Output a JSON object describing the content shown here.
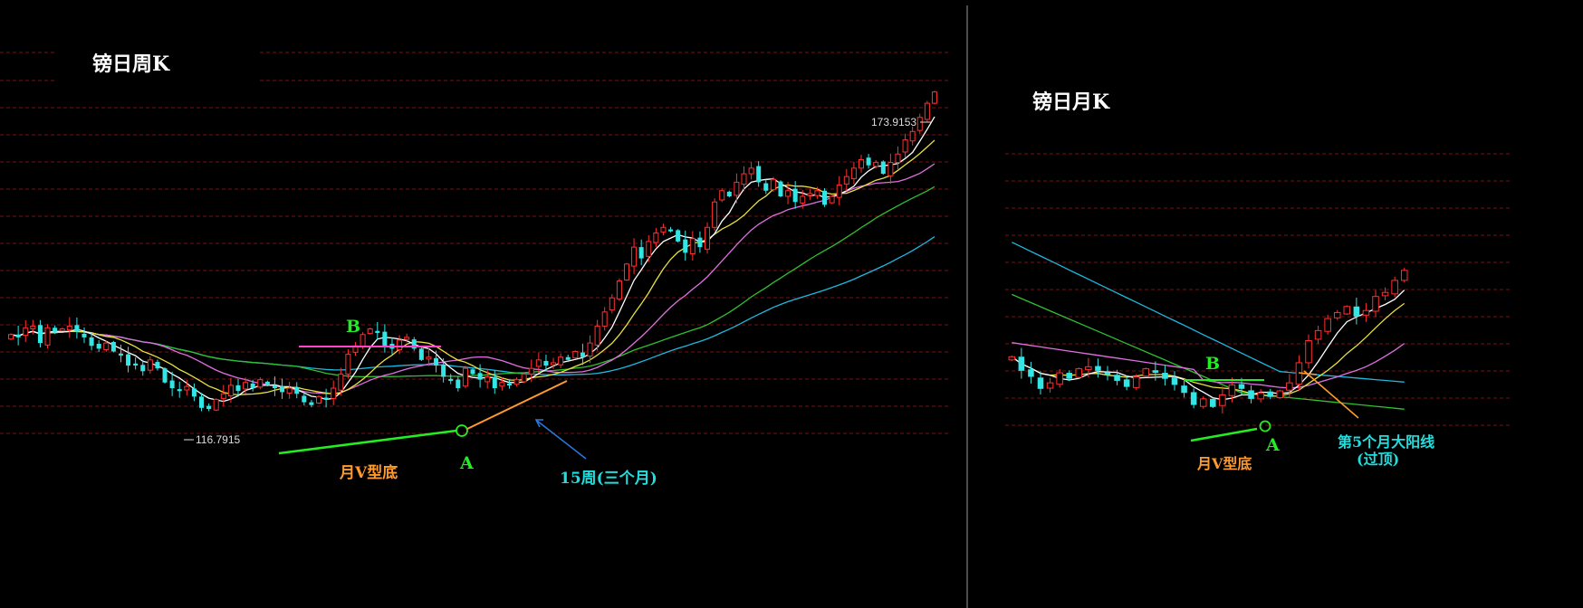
{
  "panels": [
    {
      "id": "weekly",
      "title": "镑日周K",
      "price_high": "173.9153",
      "price_low": "116.7915",
      "label_B": "B",
      "label_A": "A",
      "note_v_bottom": "月V型底",
      "note_15w": "15周(三个月)"
    },
    {
      "id": "monthly",
      "title": "镑日月K",
      "label_B": "B",
      "label_A": "A",
      "note_v_bottom": "月V型底",
      "note_big_yang": "第5个月大阳线",
      "note_over_top": "(过顶)"
    }
  ],
  "colors": {
    "background": "#000000",
    "up_candle": "#ff3030",
    "down_candle": "#33e6e6",
    "grid": "#7a1010",
    "ma_fast": "#ffffff",
    "ma_2": "#e8e040",
    "ma_3": "#e070e0",
    "ma_4": "#30c030",
    "ma_5": "#20b8e0",
    "label_green": "#22ee22",
    "label_orange": "#ff9a2e",
    "label_cyan": "#22dddd",
    "b_line_left": "#ff44cc"
  },
  "chart_data": [
    {
      "type": "candlestick",
      "title": "镑日周K",
      "ylim": [
        112,
        180
      ],
      "annotations": {
        "high": 173.9153,
        "low": 116.7915
      },
      "closes": [
        130.0,
        129.5,
        131.2,
        131.5,
        128.5,
        131.2,
        130.5,
        131.0,
        131.5,
        130.5,
        129.5,
        128.0,
        127.5,
        128.5,
        127.0,
        126.5,
        124.5,
        124.8,
        123.5,
        125.5,
        124.0,
        121.5,
        120.5,
        120.0,
        120.8,
        119.0,
        117.0,
        116.8,
        118.5,
        119.5,
        121.0,
        120.0,
        121.5,
        120.5,
        122.0,
        121.0,
        120.5,
        119.8,
        120.5,
        119.5,
        118.0,
        117.5,
        119.0,
        118.5,
        120.5,
        123.0,
        126.5,
        128.0,
        130.0,
        131.0,
        130.5,
        128.0,
        127.5,
        129.0,
        129.5,
        127.5,
        125.5,
        126.0,
        124.5,
        122.5,
        122.0,
        120.5,
        124.0,
        123.0,
        122.0,
        122.5,
        120.5,
        121.5,
        121.0,
        122.0,
        123.0,
        124.0,
        125.5,
        124.5,
        125.0,
        126.0,
        125.5,
        127.0,
        126.0,
        128.5,
        131.5,
        134.0,
        136.5,
        139.5,
        142.5,
        145.5,
        143.5,
        146.5,
        148.0,
        149.0,
        148.5,
        146.5,
        144.5,
        147.0,
        145.5,
        149.0,
        153.5,
        155.5,
        154.5,
        157.0,
        158.5,
        159.5,
        157.0,
        155.5,
        157.5,
        154.5,
        155.5,
        153.5,
        154.5,
        155.0,
        155.5,
        153.0,
        154.5,
        156.5,
        158.0,
        159.5,
        161.0,
        160.0,
        160.5,
        158.5,
        160.5,
        162.0,
        164.5,
        166.0,
        168.5,
        171.0,
        173.0
      ],
      "moving_averages": [
        "MA5",
        "MA10",
        "MA20",
        "MA40",
        "MA60"
      ]
    },
    {
      "type": "candlestick",
      "title": "镑日月K",
      "ylim": [
        112,
        180
      ],
      "closes": [
        129.5,
        126.0,
        124.5,
        121.5,
        123.0,
        125.5,
        124.0,
        126.5,
        127.0,
        126.0,
        125.0,
        123.5,
        122.0,
        124.5,
        126.5,
        125.5,
        124.0,
        122.5,
        120.5,
        117.5,
        119.0,
        117.0,
        120.0,
        122.5,
        121.5,
        119.0,
        120.5,
        119.5,
        121.0,
        123.0,
        128.0,
        133.5,
        136.0,
        139.0,
        140.5,
        142.0,
        139.5,
        141.0,
        144.5,
        145.5,
        148.5,
        151.0
      ],
      "moving_averages": [
        "MA5",
        "MA10",
        "MA20",
        "MA40",
        "MA60"
      ]
    }
  ]
}
